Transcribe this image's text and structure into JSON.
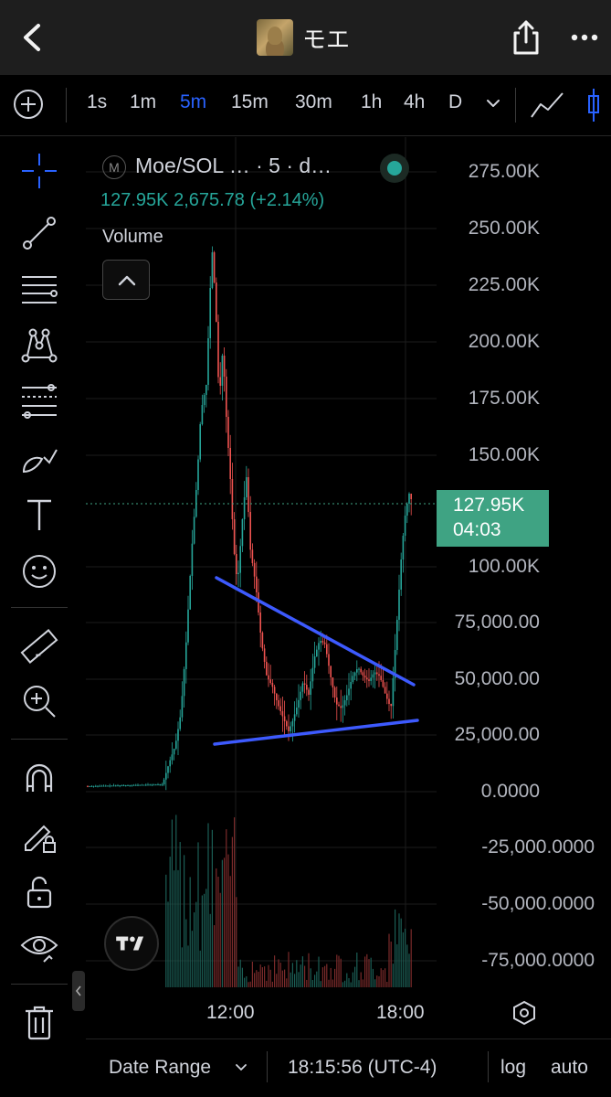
{
  "header": {
    "title": "モエ",
    "back_icon": "chevron-left-icon",
    "share_icon": "share-icon",
    "more_icon": "more-horizontal-icon"
  },
  "intervals": {
    "items": [
      "1s",
      "1m",
      "5m",
      "15m",
      "30m",
      "1h",
      "4h",
      "D"
    ],
    "active": "5m"
  },
  "toolbar": {
    "tools": [
      "crosshair-icon",
      "trend-line-icon",
      "horizontal-lines-icon",
      "pattern-icon",
      "fib-retracement-icon",
      "brush-icon",
      "text-icon",
      "emoji-icon",
      "ruler-icon",
      "zoom-in-icon",
      "magnet-icon",
      "lock-drawing-icon",
      "unlock-icon",
      "eye-icon",
      "trash-icon"
    ]
  },
  "legend": {
    "badge": "M",
    "symbol": "Moe/SOL … · 5 · d…",
    "ohlc": "127.95K  2,675.78 (+2.14%)",
    "volume_label": "Volume"
  },
  "price_axis": {
    "labels": [
      "275.00K",
      "250.00K",
      "225.00K",
      "200.00K",
      "175.00K",
      "150.00K",
      "100.00K",
      "75,000.00",
      "50,000.00",
      "25,000.00",
      "0.0000",
      "-25,000.0000",
      "-50,000.0000",
      "-75,000.0000"
    ],
    "current_price": "127.95K",
    "countdown": "04:03"
  },
  "time_axis": {
    "labels": [
      "12:00",
      "18:00"
    ]
  },
  "bottom_bar": {
    "date_range": "Date Range",
    "clock": "18:15:56 (UTC-4)",
    "log": "log",
    "auto": "auto"
  },
  "colors": {
    "up": "#26a69a",
    "down": "#ef5350",
    "trendline": "#3d5afe",
    "accent": "#2962ff",
    "price_tag": "#3fa383"
  }
}
